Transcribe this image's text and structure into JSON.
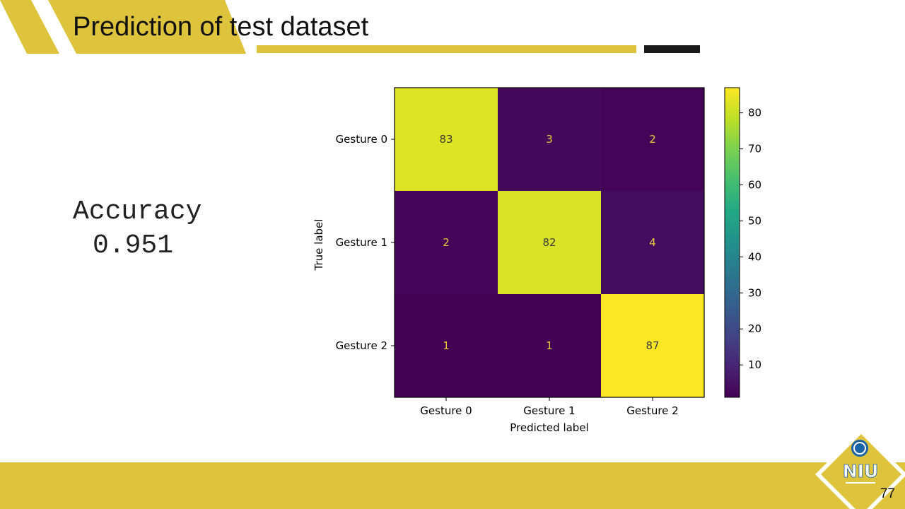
{
  "slide": {
    "title": "Prediction of test dataset",
    "accuracy_label": "Accuracy",
    "accuracy_value": "0.951",
    "page_number": "77",
    "logo_text": "NIU"
  },
  "colors": {
    "gold": "#dec33c",
    "dark_bar": "#1a1a1a",
    "viridis_low": "#440154",
    "viridis_high": "#fde725"
  },
  "chart_data": {
    "type": "heatmap",
    "title": "",
    "xlabel": "Predicted label",
    "ylabel": "True label",
    "x_categories": [
      "Gesture 0",
      "Gesture 1",
      "Gesture 2"
    ],
    "y_categories": [
      "Gesture 0",
      "Gesture 1",
      "Gesture 2"
    ],
    "matrix": [
      [
        83,
        3,
        2
      ],
      [
        2,
        82,
        4
      ],
      [
        1,
        1,
        87
      ]
    ],
    "colormap": "viridis",
    "colorbar": {
      "min": 1,
      "max": 87,
      "ticks": [
        10,
        20,
        30,
        40,
        50,
        60,
        70,
        80
      ]
    },
    "grid": false
  }
}
